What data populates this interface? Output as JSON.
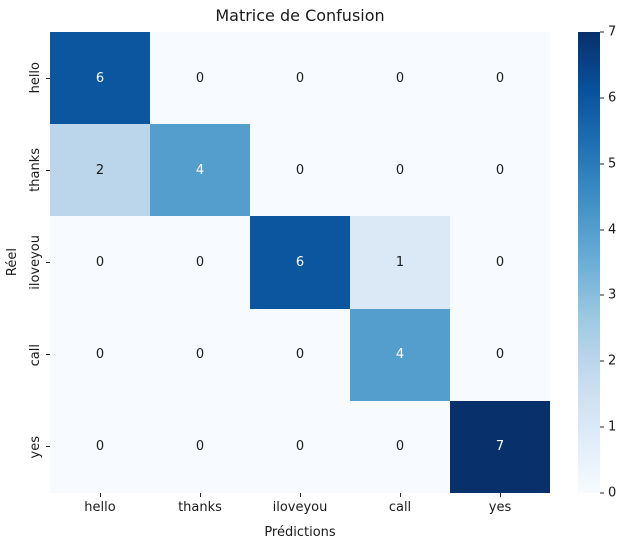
{
  "chart_data": {
    "type": "heatmap",
    "title": "Matrice de Confusion",
    "xlabel": "Prédictions",
    "ylabel": "Réel",
    "categories": [
      "hello",
      "thanks",
      "iloveyou",
      "call",
      "yes"
    ],
    "matrix": [
      [
        6,
        0,
        0,
        0,
        0
      ],
      [
        2,
        4,
        0,
        0,
        0
      ],
      [
        0,
        0,
        6,
        1,
        0
      ],
      [
        0,
        0,
        0,
        4,
        0
      ],
      [
        0,
        0,
        0,
        0,
        7
      ]
    ],
    "vmin": 0,
    "vmax": 7,
    "colormap": "Blues",
    "grid": false,
    "value_colors": {
      "0": "#f7fbff",
      "1": "#dbe8f6",
      "2": "#bbd6eb",
      "4": "#549ecd",
      "6": "#0c56a0",
      "7": "#08306b"
    },
    "annot_text_light": "#ffffff",
    "annot_text_dark": "#1a1a1a",
    "white_text_min_value": 4,
    "colorbar": {
      "position": "right",
      "ticks_top_to_bottom": [
        "7",
        "6",
        "5",
        "4",
        "3",
        "2",
        "1",
        "0"
      ],
      "gradient_bottom_to_top": [
        "#f7fbff",
        "#deebf7",
        "#c6dbef",
        "#9ecae1",
        "#6baed6",
        "#4292c6",
        "#2171b5",
        "#08519c",
        "#08306b"
      ]
    }
  }
}
